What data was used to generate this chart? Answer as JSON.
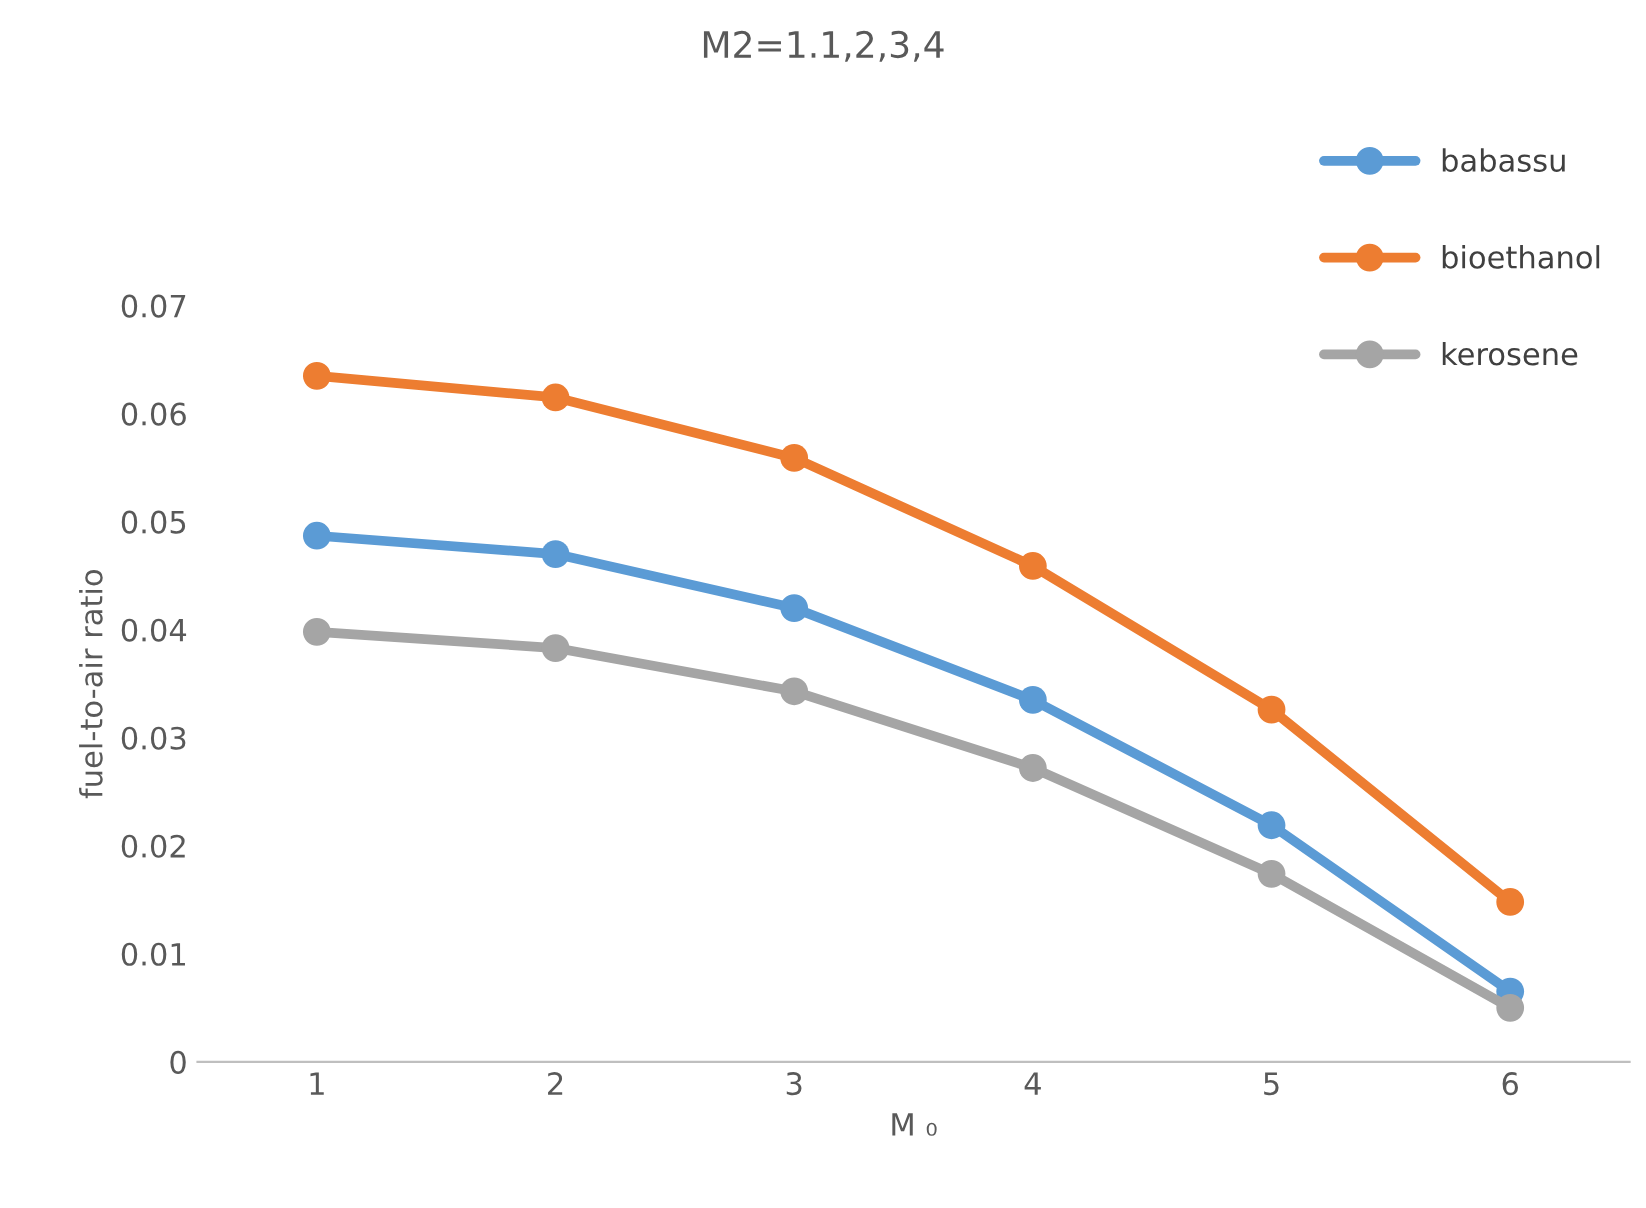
{
  "chart_data": {
    "type": "line",
    "title": "M2=1.1,2,3,4",
    "xlabel": "M ₀",
    "ylabel": "fuel-to-air ratio",
    "categories": [
      "1",
      "2",
      "3",
      "4",
      "5",
      "6"
    ],
    "series": [
      {
        "name": "babassu",
        "color": "#5b9bd5",
        "values": [
          0.0487,
          0.047,
          0.042,
          0.0335,
          0.0219,
          0.0065
        ]
      },
      {
        "name": "bioethanol",
        "color": "#ed7d31",
        "values": [
          0.0635,
          0.0615,
          0.0559,
          0.0459,
          0.0326,
          0.0148
        ]
      },
      {
        "name": "kerosene",
        "color": "#a5a5a5",
        "values": [
          0.0398,
          0.0383,
          0.0343,
          0.0272,
          0.0174,
          0.005
        ]
      }
    ],
    "ylim": [
      0,
      0.07
    ],
    "yticks": [
      0,
      0.01,
      0.02,
      0.03,
      0.04,
      0.05,
      0.06,
      0.07
    ],
    "grid": false,
    "legend": "top right",
    "marker": "circle",
    "line_style": "solid"
  }
}
